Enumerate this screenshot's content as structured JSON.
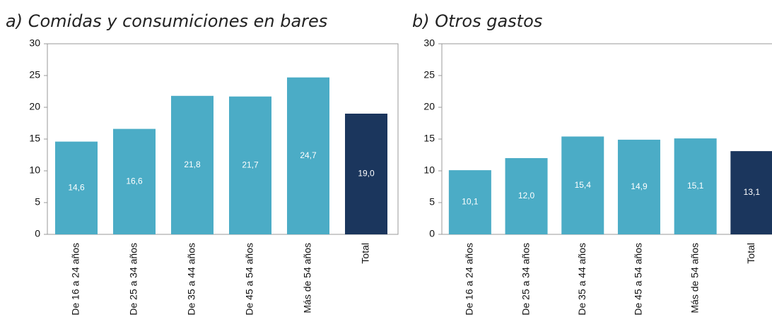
{
  "chart_data": [
    {
      "type": "bar",
      "title": "a)  Comidas y consumiciones en bares",
      "categories": [
        "De 16 a 24 años",
        "De 25 a 34 años",
        "De 35 a 44 años",
        "De 45 a 54 años",
        "Más de 54 años",
        "Total"
      ],
      "values": [
        14.6,
        16.6,
        21.8,
        21.7,
        24.7,
        19.0
      ],
      "value_labels": [
        "14,6",
        "16,6",
        "21,8",
        "21,7",
        "24,7",
        "19,0"
      ],
      "colors": [
        "#4bacc6",
        "#4bacc6",
        "#4bacc6",
        "#4bacc6",
        "#4bacc6",
        "#1b365d"
      ],
      "ylim": [
        0,
        30
      ],
      "yticks": [
        0,
        5,
        10,
        15,
        20,
        25,
        30
      ],
      "grid": false
    },
    {
      "type": "bar",
      "title": "b) Otros gastos",
      "categories": [
        "De 16 a 24 años",
        "De 25 a 34 años",
        "De 35 a 44 años",
        "De 45 a 54 años",
        "Más de 54 años",
        "Total"
      ],
      "values": [
        10.1,
        12.0,
        15.4,
        14.9,
        15.1,
        13.1
      ],
      "value_labels": [
        "10,1",
        "12,0",
        "15,4",
        "14,9",
        "15,1",
        "13,1"
      ],
      "colors": [
        "#4bacc6",
        "#4bacc6",
        "#4bacc6",
        "#4bacc6",
        "#4bacc6",
        "#1b365d"
      ],
      "ylim": [
        0,
        30
      ],
      "yticks": [
        0,
        5,
        10,
        15,
        20,
        25,
        30
      ],
      "grid": false
    }
  ]
}
